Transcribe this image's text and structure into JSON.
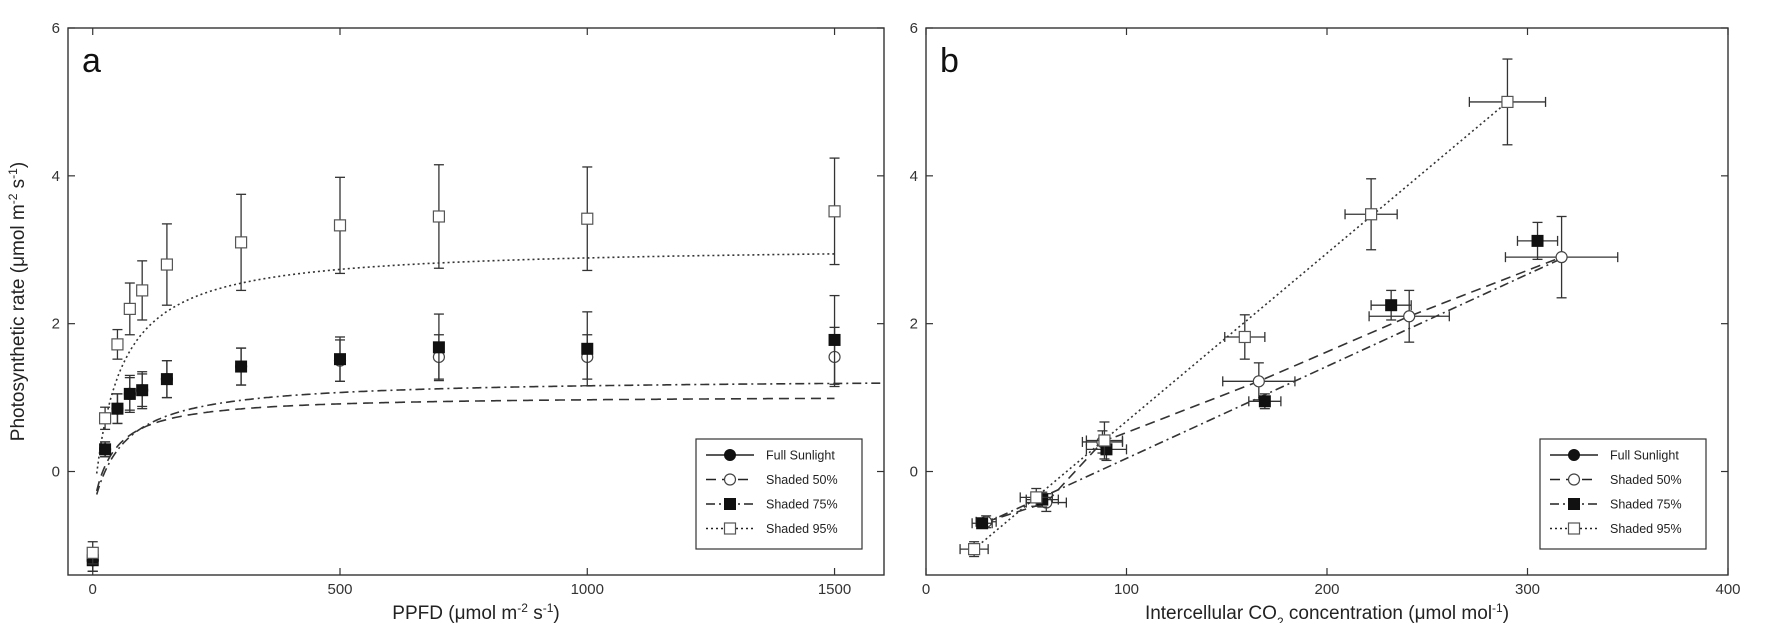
{
  "chart_data": [
    {
      "type": "scatter",
      "panel_label": "a",
      "xlabel": {
        "pre": "PPFD (μmol m",
        "sup1": "-2",
        "mid": " s",
        "sup2": "-1",
        "post": ")"
      },
      "ylabel": {
        "pre": "Photosynthetic rate (μmol m",
        "sup1": "-2",
        "mid": " s",
        "sup2": "-1",
        "post": ")"
      },
      "xlim": [
        -50,
        1600
      ],
      "ylim": [
        -1.4,
        6
      ],
      "xticks": [
        0,
        500,
        1000,
        1500
      ],
      "yticks": [
        0,
        2,
        4,
        6
      ],
      "legend_position": "lower-right",
      "series": [
        {
          "name": "Full Sunlight",
          "marker": "filled-circle",
          "line": "solid",
          "x": [
            0
          ],
          "y": [
            -1.2
          ],
          "err": [
            0.15
          ]
        },
        {
          "name": "Shaded 50%",
          "marker": "open-circle",
          "line": "dashed",
          "x": [
            0,
            25,
            50,
            75,
            100,
            150,
            300,
            500,
            700,
            1000,
            1500
          ],
          "y": [
            -1.2,
            0.3,
            0.85,
            1.05,
            1.1,
            1.25,
            1.42,
            1.5,
            1.55,
            1.55,
            1.55
          ],
          "err": [
            0.15,
            0.1,
            0.2,
            0.22,
            0.22,
            0.25,
            0.25,
            0.28,
            0.3,
            0.3,
            0.4
          ]
        },
        {
          "name": "Shaded 75%",
          "marker": "filled-square",
          "line": "dash-dot",
          "x": [
            0,
            25,
            50,
            75,
            100,
            150,
            300,
            500,
            700,
            1000,
            1500
          ],
          "y": [
            -1.2,
            0.3,
            0.85,
            1.05,
            1.1,
            1.25,
            1.42,
            1.52,
            1.68,
            1.66,
            1.78
          ],
          "err": [
            0.15,
            0.1,
            0.2,
            0.25,
            0.25,
            0.25,
            0.25,
            0.3,
            0.45,
            0.5,
            0.6
          ]
        },
        {
          "name": "Shaded 95%",
          "marker": "open-square",
          "line": "dotted",
          "x": [
            0,
            25,
            50,
            75,
            100,
            150,
            300,
            500,
            700,
            1000,
            1500
          ],
          "y": [
            -1.1,
            0.72,
            1.72,
            2.2,
            2.45,
            2.8,
            3.1,
            3.33,
            3.45,
            3.42,
            3.52
          ],
          "err": [
            0.15,
            0.15,
            0.2,
            0.35,
            0.4,
            0.55,
            0.65,
            0.65,
            0.7,
            0.7,
            0.72
          ]
        }
      ],
      "fits": [
        {
          "series": "Shaded 50%",
          "line": "dashed",
          "amax": 1.55,
          "k": 40,
          "rd": 0.52,
          "x_max": 1500
        },
        {
          "series": "Shaded 75%",
          "line": "dash-dot",
          "amax": 1.78,
          "k": 60,
          "rd": 0.52,
          "x_max": 1600
        },
        {
          "series": "Shaded 95%",
          "line": "dotted",
          "amax": 3.58,
          "k": 50,
          "rd": 0.52,
          "x_max": 1500
        }
      ]
    },
    {
      "type": "scatter",
      "panel_label": "b",
      "xlabel": {
        "pre": "Intercellular  CO",
        "sub": "2",
        "post": " concentration  (μmol mol",
        "sup": "-1",
        "end": ")"
      },
      "ylabel": null,
      "xlim": [
        0,
        400
      ],
      "ylim": [
        -1.4,
        6
      ],
      "xticks": [
        0,
        100,
        200,
        300,
        400
      ],
      "yticks": [
        0,
        2,
        4,
        6
      ],
      "legend_position": "lower-right",
      "series": [
        {
          "name": "Full Sunlight",
          "marker": "filled-circle",
          "line": "solid",
          "x": [],
          "y": [],
          "xerr": [],
          "yerr": []
        },
        {
          "name": "Shaded 50%",
          "marker": "open-circle",
          "line": "dashed",
          "x": [
            30,
            60,
            88,
            166,
            241,
            317
          ],
          "y": [
            -0.68,
            -0.42,
            0.4,
            1.22,
            2.1,
            2.9
          ],
          "xerr": [
            5,
            10,
            10,
            18,
            20,
            28
          ],
          "yerr": [
            0.08,
            0.12,
            0.15,
            0.25,
            0.35,
            0.55
          ]
        },
        {
          "name": "Shaded 75%",
          "marker": "filled-square",
          "line": "dash-dot",
          "x": [
            28,
            58,
            90,
            169,
            232,
            305
          ],
          "y": [
            -0.7,
            -0.38,
            0.3,
            0.95,
            2.25,
            3.12
          ],
          "xerr": [
            5,
            8,
            10,
            8,
            10,
            10
          ],
          "yerr": [
            0.05,
            0.1,
            0.15,
            0.1,
            0.2,
            0.25
          ]
        },
        {
          "name": "Shaded 95%",
          "marker": "open-square",
          "line": "dotted",
          "x": [
            24,
            55,
            89,
            159,
            222,
            290
          ],
          "y": [
            -1.05,
            -0.35,
            0.42,
            1.82,
            3.48,
            5.0
          ],
          "xerr": [
            7,
            8,
            9,
            10,
            13,
            19
          ],
          "yerr": [
            0.1,
            0.12,
            0.25,
            0.3,
            0.48,
            0.58
          ]
        }
      ],
      "fits": [
        {
          "series": "Shaded 50%",
          "line": "dashed",
          "x": [
            30,
            60,
            88,
            166,
            241,
            317
          ],
          "y": [
            -0.68,
            -0.42,
            0.4,
            1.22,
            2.1,
            2.9
          ]
        },
        {
          "series": "Shaded 75%",
          "line": "dash-dot",
          "x": [
            28,
            317
          ],
          "y": [
            -0.72,
            2.88
          ]
        },
        {
          "series": "Shaded 95%",
          "line": "dotted",
          "x": [
            24,
            290
          ],
          "y": [
            -1.05,
            5.0
          ]
        }
      ]
    }
  ]
}
